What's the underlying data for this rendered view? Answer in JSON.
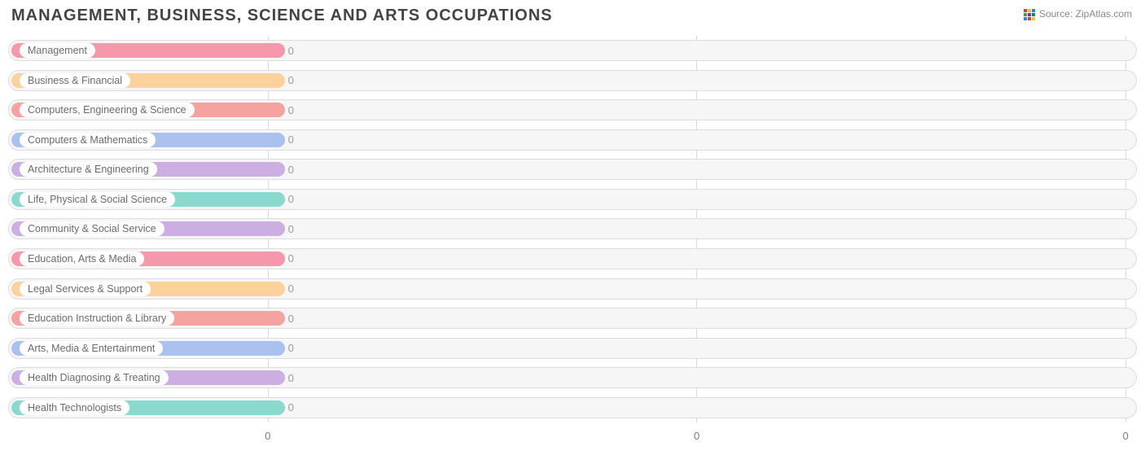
{
  "title": "MANAGEMENT, BUSINESS, SCIENCE AND ARTS OCCUPATIONS",
  "source_label": "Source: ZipAtlas.com",
  "chart": {
    "type": "bar-horizontal",
    "background_color": "#ffffff",
    "track_bg": "#f7f6f6",
    "track_border": "#dcdcdc",
    "grid_color": "#d9d9d9",
    "text_color": "#6a6a6a",
    "value_color": "#9a9a9a",
    "xaxis_ticks": [
      {
        "pos_pct": 23.0,
        "label": "0"
      },
      {
        "pos_pct": 61.0,
        "label": "0"
      },
      {
        "pos_pct": 99.0,
        "label": "0"
      }
    ],
    "fill_width_pct": 24.5,
    "pill_bg": "#ffffff",
    "fontsize_title": 20,
    "fontsize_label": 12.5,
    "fontsize_value": 13,
    "bars": [
      {
        "label": "Management",
        "value": 0,
        "color": "#f797ab"
      },
      {
        "label": "Business & Financial",
        "value": 0,
        "color": "#fcd29c"
      },
      {
        "label": "Computers, Engineering & Science",
        "value": 0,
        "color": "#f5a3a0"
      },
      {
        "label": "Computers & Mathematics",
        "value": 0,
        "color": "#a9c1ec"
      },
      {
        "label": "Architecture & Engineering",
        "value": 0,
        "color": "#cdaee3"
      },
      {
        "label": "Life, Physical & Social Science",
        "value": 0,
        "color": "#89d9ce"
      },
      {
        "label": "Community & Social Service",
        "value": 0,
        "color": "#cdaee3"
      },
      {
        "label": "Education, Arts & Media",
        "value": 0,
        "color": "#f797ab"
      },
      {
        "label": "Legal Services & Support",
        "value": 0,
        "color": "#fcd29c"
      },
      {
        "label": "Education Instruction & Library",
        "value": 0,
        "color": "#f5a3a0"
      },
      {
        "label": "Arts, Media & Entertainment",
        "value": 0,
        "color": "#a9c1ec"
      },
      {
        "label": "Health Diagnosing & Treating",
        "value": 0,
        "color": "#cdaee3"
      },
      {
        "label": "Health Technologists",
        "value": 0,
        "color": "#89d9ce"
      }
    ]
  },
  "logo_colors": {
    "red": "#e53935",
    "yellow": "#fbc02d",
    "blue": "#1e88e5",
    "green": "#43a047",
    "purple": "#8e24aa",
    "teal": "#00897b"
  }
}
